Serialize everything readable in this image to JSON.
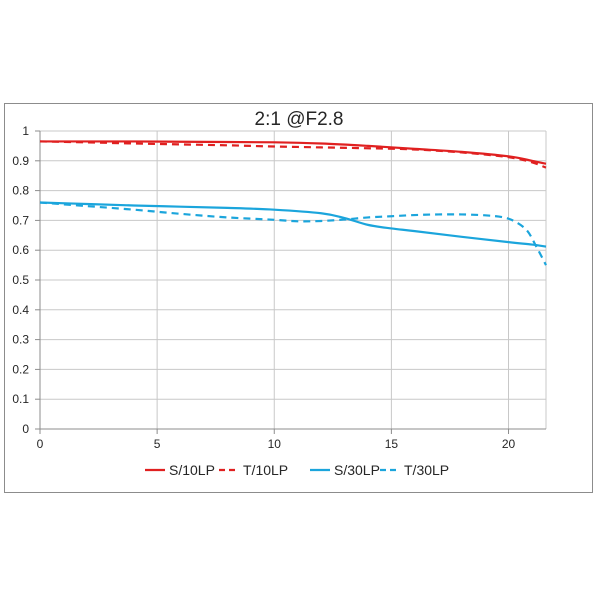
{
  "chart_data": {
    "type": "line",
    "title": "2:1  @F2.8",
    "xlabel": "",
    "ylabel": "",
    "xlim": [
      0,
      21.6
    ],
    "ylim": [
      0,
      1
    ],
    "x_ticks": [
      0,
      5,
      10,
      15,
      20
    ],
    "y_ticks": [
      0,
      0.1,
      0.2,
      0.3,
      0.4,
      0.5,
      0.6,
      0.7,
      0.8,
      0.9,
      1
    ],
    "x_tick_labels": [
      "0",
      "5",
      "10",
      "15",
      "20"
    ],
    "y_tick_labels": [
      "0",
      "0.1",
      "0.2",
      "0.3",
      "0.4",
      "0.5",
      "0.6",
      "0.7",
      "0.8",
      "0.9",
      "1"
    ],
    "grid": true,
    "legend_position": "bottom",
    "series": [
      {
        "name": "S/10LP",
        "color": "#e02020",
        "dash": "solid",
        "points": [
          [
            0,
            0.965
          ],
          [
            2,
            0.965
          ],
          [
            4,
            0.965
          ],
          [
            6,
            0.964
          ],
          [
            8,
            0.963
          ],
          [
            10,
            0.962
          ],
          [
            12,
            0.958
          ],
          [
            14,
            0.95
          ],
          [
            16,
            0.94
          ],
          [
            18,
            0.93
          ],
          [
            20,
            0.915
          ],
          [
            21,
            0.9
          ],
          [
            21.6,
            0.89
          ]
        ]
      },
      {
        "name": "T/10LP",
        "color": "#e02020",
        "dash": "dashed",
        "points": [
          [
            0,
            0.965
          ],
          [
            2,
            0.962
          ],
          [
            4,
            0.958
          ],
          [
            6,
            0.955
          ],
          [
            8,
            0.952
          ],
          [
            10,
            0.948
          ],
          [
            12,
            0.945
          ],
          [
            14,
            0.942
          ],
          [
            16,
            0.938
          ],
          [
            18,
            0.928
          ],
          [
            20,
            0.912
          ],
          [
            21,
            0.895
          ],
          [
            21.6,
            0.877
          ]
        ]
      },
      {
        "name": "S/30LP",
        "color": "#1ba5dc",
        "dash": "solid",
        "points": [
          [
            0,
            0.76
          ],
          [
            2,
            0.755
          ],
          [
            4,
            0.75
          ],
          [
            6,
            0.746
          ],
          [
            8,
            0.742
          ],
          [
            10,
            0.736
          ],
          [
            12,
            0.724
          ],
          [
            13,
            0.708
          ],
          [
            14,
            0.685
          ],
          [
            15,
            0.673
          ],
          [
            16,
            0.664
          ],
          [
            18,
            0.645
          ],
          [
            20,
            0.627
          ],
          [
            21,
            0.619
          ],
          [
            21.6,
            0.612
          ]
        ]
      },
      {
        "name": "T/30LP",
        "color": "#1ba5dc",
        "dash": "dashed",
        "points": [
          [
            0,
            0.76
          ],
          [
            2,
            0.748
          ],
          [
            4,
            0.736
          ],
          [
            6,
            0.722
          ],
          [
            8,
            0.71
          ],
          [
            10,
            0.702
          ],
          [
            11,
            0.697
          ],
          [
            12,
            0.698
          ],
          [
            13,
            0.703
          ],
          [
            14,
            0.71
          ],
          [
            15,
            0.714
          ],
          [
            16,
            0.718
          ],
          [
            17,
            0.72
          ],
          [
            18,
            0.72
          ],
          [
            19,
            0.717
          ],
          [
            19.8,
            0.71
          ],
          [
            20.3,
            0.695
          ],
          [
            20.8,
            0.665
          ],
          [
            21.2,
            0.61
          ],
          [
            21.6,
            0.55
          ]
        ]
      }
    ]
  }
}
